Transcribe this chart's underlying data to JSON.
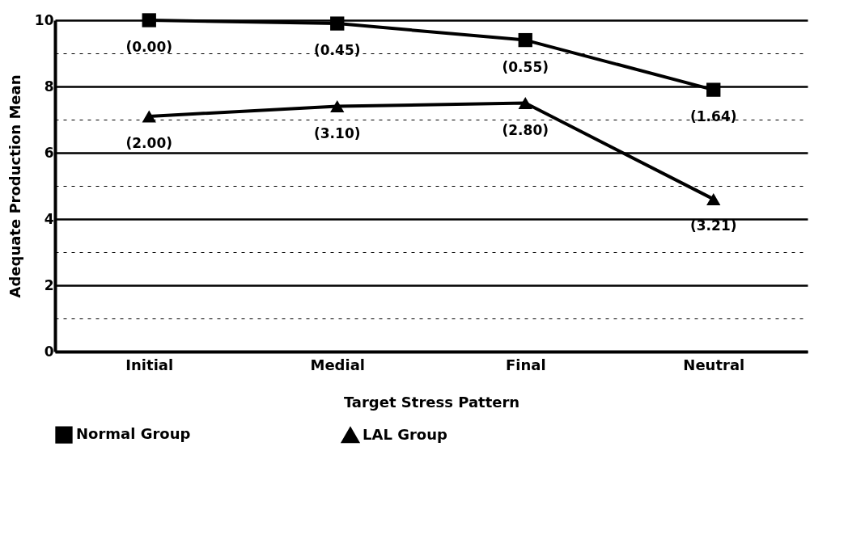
{
  "chart_data": {
    "type": "line",
    "xlabel": "Target Stress Pattern",
    "ylabel": "Adequate Production Mean",
    "categories": [
      "Initial",
      "Medial",
      "Final",
      "Neutral"
    ],
    "series": [
      {
        "name": "Normal Group",
        "color": "#000000",
        "marker": "square",
        "values": [
          10.0,
          9.9,
          9.4,
          7.9
        ]
      },
      {
        "name": "LAL Group",
        "color": "#000000",
        "marker": "triangle",
        "values": [
          7.1,
          7.4,
          7.5,
          4.6
        ]
      }
    ],
    "ylim": [
      0,
      10
    ],
    "yticks": [
      0,
      {
        "value": 1,
        "label": null
      },
      2,
      {
        "value": 3,
        "label": null
      },
      4,
      {
        "value": 5,
        "label": null
      },
      6,
      {
        "value": 7,
        "label": null
      },
      8,
      {
        "value": 9,
        "label": null
      },
      10
    ],
    "grid": "y",
    "legend": "bottom",
    "line_style": "solid",
    "annotations": [
      {
        "text": "(0.00)",
        "x": "Initial",
        "y": 10.0
      },
      {
        "text": "(0.45)",
        "x": "Medial",
        "y": 9.9
      },
      {
        "text": "(0.55)",
        "x": "Final",
        "y": 9.4
      },
      {
        "text": "(1.64)",
        "x": "Neutral",
        "y": 7.9
      },
      {
        "text": "(2.00)",
        "x": "Initial",
        "y": 7.1
      },
      {
        "text": "(3.10)",
        "x": "Medial",
        "y": 7.4
      },
      {
        "text": "(2.80)",
        "x": "Final",
        "y": 7.5
      },
      {
        "text": "(3.21)",
        "x": "Neutral",
        "y": 4.6
      }
    ]
  }
}
